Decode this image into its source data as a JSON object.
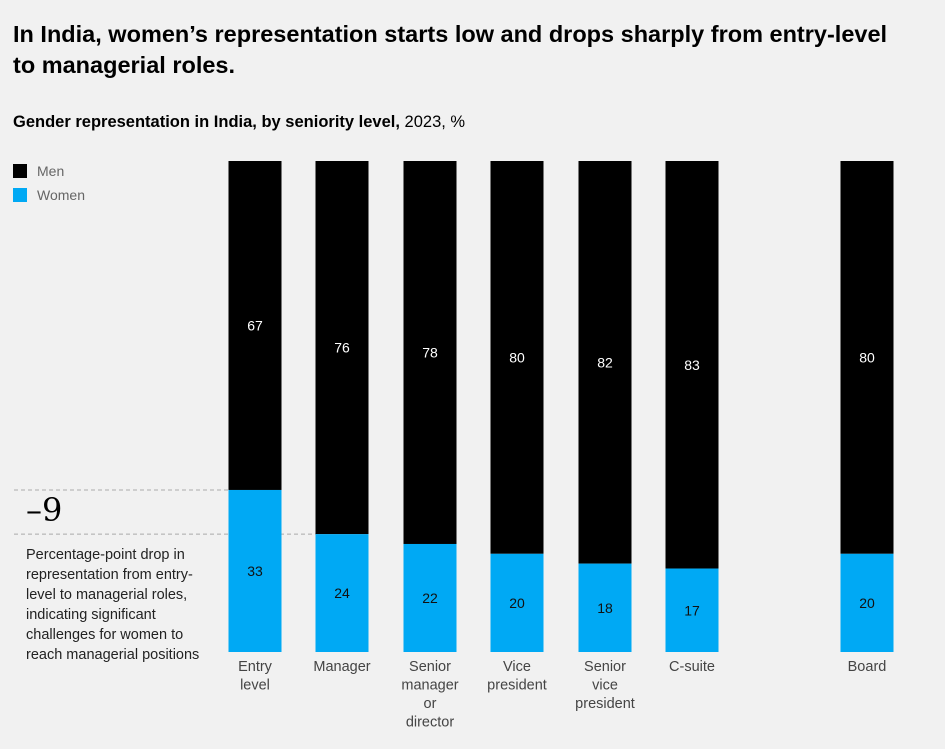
{
  "header": {
    "title": "In India, women’s representation starts low and drops sharply from entry-level to managerial roles.",
    "subtitle_main": "Gender representation in India, by seniority level,",
    "subtitle_rest": " 2023, %"
  },
  "colors": {
    "men": "#000000",
    "women": "#00a9f4",
    "background": "#f1f1f1"
  },
  "annotation": {
    "value": "–9",
    "text": "Percentage-point drop in representation from entry-level to managerial roles, indicating significant challenges for women to reach managerial positions"
  },
  "chart_data": {
    "type": "bar",
    "stacked": true,
    "title": "Gender representation in India, by seniority level, 2023, %",
    "categories": [
      "Entry level",
      "Manager",
      "Senior manager or director",
      "Vice president",
      "Senior vice president",
      "C-suite",
      "Board"
    ],
    "category_label_lines": [
      [
        "Entry",
        "level"
      ],
      [
        "Manager"
      ],
      [
        "Senior",
        "manager",
        "or",
        "director"
      ],
      [
        "Vice",
        "president"
      ],
      [
        "Senior",
        "vice",
        "president"
      ],
      [
        "C-suite"
      ],
      [
        "Board"
      ]
    ],
    "series": [
      {
        "name": "Women",
        "color": "#00a9f4",
        "values": [
          33,
          24,
          22,
          20,
          18,
          17,
          20
        ]
      },
      {
        "name": "Men",
        "color": "#000000",
        "values": [
          67,
          76,
          78,
          80,
          82,
          83,
          80
        ]
      }
    ],
    "legend": [
      "Men",
      "Women"
    ],
    "legend_position": "top-left",
    "ylim": [
      0,
      100
    ],
    "xlabel": "",
    "ylabel": "",
    "grid": false
  }
}
